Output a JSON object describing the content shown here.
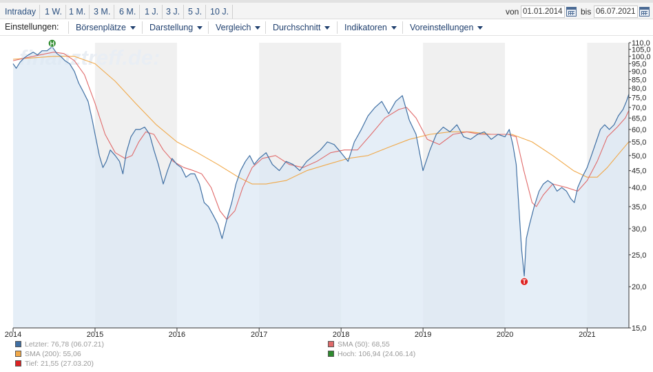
{
  "range_buttons": [
    "Intraday",
    "1 W.",
    "1 M.",
    "3 M.",
    "6 M.",
    "1 J.",
    "3 J.",
    "5 J.",
    "10 J."
  ],
  "date_range": {
    "from_label": "von",
    "from": "01.01.2014",
    "to_label": "bis",
    "to": "06.07.2021"
  },
  "settings": {
    "label": "Einstellungen:",
    "menus": [
      "Börsenplätze",
      "Darstellung",
      "Vergleich",
      "Durchschnitt",
      "Indikatoren",
      "Voreinstellungen"
    ]
  },
  "chart_data": {
    "type": "line",
    "watermark": "finanztreff.de:",
    "y_scale": "log",
    "ylim": [
      15,
      110
    ],
    "y_ticks": [
      "110,0",
      "105,0",
      "100,0",
      "95,0",
      "90,0",
      "85,0",
      "80,0",
      "75,0",
      "70,0",
      "65,0",
      "60,0",
      "55,0",
      "50,0",
      "45,0",
      "40,0",
      "35,0",
      "30,0",
      "25,0",
      "20,0",
      "15,0"
    ],
    "x_range": [
      "2014-01-01",
      "2021-07-06"
    ],
    "x_ticks": [
      {
        "label": "2014",
        "date": "2014-01-01"
      },
      {
        "label": "2015",
        "date": "2015-01-01"
      },
      {
        "label": "2016",
        "date": "2016-01-01"
      },
      {
        "label": "2017",
        "date": "2017-01-01"
      },
      {
        "label": "2018",
        "date": "2018-01-01"
      },
      {
        "label": "2019",
        "date": "2019-01-01"
      },
      {
        "label": "2020",
        "date": "2020-01-01"
      },
      {
        "label": "2021",
        "date": "2021-01-01"
      }
    ],
    "shaded_years": [
      [
        "2015-01-01",
        "2016-01-01"
      ],
      [
        "2017-01-01",
        "2018-01-01"
      ],
      [
        "2019-01-01",
        "2020-01-01"
      ],
      [
        "2021-01-01",
        "2021-07-06"
      ]
    ],
    "colors": {
      "price": "#3f6fa3",
      "price_fill": "#dce8f4",
      "sma50": "#e06a6a",
      "sma200": "#f0a848",
      "high_marker": "#2e8b2e",
      "low_marker": "#dd2222",
      "shade": "#f0f0f0"
    },
    "series": [
      {
        "name": "Letzter",
        "color": "#3f6fa3",
        "points": [
          [
            "2014-01-01",
            95
          ],
          [
            "2014-01-15",
            92
          ],
          [
            "2014-02-01",
            96
          ],
          [
            "2014-02-20",
            99
          ],
          [
            "2014-03-10",
            101
          ],
          [
            "2014-04-01",
            103
          ],
          [
            "2014-04-20",
            101
          ],
          [
            "2014-05-10",
            104
          ],
          [
            "2014-06-01",
            104
          ],
          [
            "2014-06-24",
            106.94
          ],
          [
            "2014-07-15",
            102
          ],
          [
            "2014-08-01",
            100
          ],
          [
            "2014-08-20",
            97
          ],
          [
            "2014-09-10",
            95
          ],
          [
            "2014-10-01",
            90
          ],
          [
            "2014-10-20",
            83
          ],
          [
            "2014-11-10",
            78
          ],
          [
            "2014-12-01",
            73
          ],
          [
            "2014-12-20",
            64
          ],
          [
            "2015-01-01",
            58
          ],
          [
            "2015-01-20",
            50
          ],
          [
            "2015-02-05",
            46
          ],
          [
            "2015-02-20",
            48
          ],
          [
            "2015-03-10",
            52
          ],
          [
            "2015-04-01",
            50
          ],
          [
            "2015-04-20",
            48
          ],
          [
            "2015-05-05",
            44
          ],
          [
            "2015-05-20",
            51
          ],
          [
            "2015-06-10",
            57
          ],
          [
            "2015-07-01",
            60
          ],
          [
            "2015-07-20",
            60
          ],
          [
            "2015-08-10",
            61
          ],
          [
            "2015-09-01",
            58
          ],
          [
            "2015-09-20",
            52
          ],
          [
            "2015-10-10",
            47
          ],
          [
            "2015-11-01",
            41
          ],
          [
            "2015-11-20",
            45
          ],
          [
            "2015-12-10",
            49
          ],
          [
            "2016-01-01",
            47
          ],
          [
            "2016-01-20",
            46
          ],
          [
            "2016-02-10",
            43
          ],
          [
            "2016-03-01",
            44
          ],
          [
            "2016-03-20",
            44
          ],
          [
            "2016-04-10",
            41
          ],
          [
            "2016-05-01",
            36
          ],
          [
            "2016-05-20",
            35
          ],
          [
            "2016-06-10",
            33
          ],
          [
            "2016-07-01",
            31
          ],
          [
            "2016-07-20",
            28
          ],
          [
            "2016-08-10",
            32
          ],
          [
            "2016-09-01",
            36
          ],
          [
            "2016-09-20",
            41
          ],
          [
            "2016-10-10",
            45
          ],
          [
            "2016-11-01",
            48
          ],
          [
            "2016-11-20",
            50
          ],
          [
            "2016-12-10",
            47
          ],
          [
            "2017-01-01",
            49
          ],
          [
            "2017-02-01",
            51
          ],
          [
            "2017-03-01",
            47
          ],
          [
            "2017-04-01",
            45
          ],
          [
            "2017-05-01",
            48
          ],
          [
            "2017-06-01",
            47
          ],
          [
            "2017-07-01",
            45
          ],
          [
            "2017-08-01",
            48
          ],
          [
            "2017-09-01",
            50
          ],
          [
            "2017-10-01",
            52
          ],
          [
            "2017-11-01",
            55
          ],
          [
            "2017-12-01",
            54
          ],
          [
            "2018-01-01",
            51
          ],
          [
            "2018-02-01",
            48
          ],
          [
            "2018-03-01",
            55
          ],
          [
            "2018-04-01",
            60
          ],
          [
            "2018-05-01",
            66
          ],
          [
            "2018-06-01",
            70
          ],
          [
            "2018-07-01",
            73
          ],
          [
            "2018-08-01",
            67
          ],
          [
            "2018-09-01",
            73
          ],
          [
            "2018-10-01",
            76
          ],
          [
            "2018-11-01",
            64
          ],
          [
            "2018-12-01",
            58
          ],
          [
            "2019-01-01",
            45
          ],
          [
            "2019-02-01",
            52
          ],
          [
            "2019-03-01",
            58
          ],
          [
            "2019-04-01",
            61
          ],
          [
            "2019-05-01",
            59
          ],
          [
            "2019-06-01",
            62
          ],
          [
            "2019-07-01",
            57
          ],
          [
            "2019-08-01",
            56
          ],
          [
            "2019-09-01",
            58
          ],
          [
            "2019-10-01",
            59
          ],
          [
            "2019-11-01",
            56
          ],
          [
            "2019-12-01",
            58
          ],
          [
            "2020-01-01",
            57
          ],
          [
            "2020-01-20",
            60
          ],
          [
            "2020-02-05",
            54
          ],
          [
            "2020-02-20",
            47
          ],
          [
            "2020-03-05",
            33
          ],
          [
            "2020-03-15",
            26
          ],
          [
            "2020-03-27",
            21.55
          ],
          [
            "2020-04-05",
            28
          ],
          [
            "2020-04-20",
            31
          ],
          [
            "2020-05-10",
            35
          ],
          [
            "2020-06-01",
            39
          ],
          [
            "2020-06-20",
            41
          ],
          [
            "2020-07-10",
            42
          ],
          [
            "2020-08-01",
            41
          ],
          [
            "2020-08-20",
            39
          ],
          [
            "2020-09-10",
            40
          ],
          [
            "2020-10-01",
            39
          ],
          [
            "2020-10-20",
            37
          ],
          [
            "2020-11-05",
            36
          ],
          [
            "2020-11-20",
            40
          ],
          [
            "2020-12-10",
            43
          ],
          [
            "2021-01-01",
            46
          ],
          [
            "2021-01-20",
            50
          ],
          [
            "2021-02-10",
            55
          ],
          [
            "2021-03-01",
            60
          ],
          [
            "2021-03-20",
            62
          ],
          [
            "2021-04-10",
            60
          ],
          [
            "2021-05-01",
            62
          ],
          [
            "2021-05-20",
            66
          ],
          [
            "2021-06-10",
            69
          ],
          [
            "2021-06-25",
            73
          ],
          [
            "2021-07-06",
            76.78
          ]
        ]
      },
      {
        "name": "SMA (50)",
        "color": "#e06a6a",
        "points": [
          [
            "2014-01-01",
            97
          ],
          [
            "2014-03-01",
            99
          ],
          [
            "2014-05-01",
            101
          ],
          [
            "2014-07-01",
            103
          ],
          [
            "2014-08-15",
            102
          ],
          [
            "2014-10-01",
            97
          ],
          [
            "2014-11-15",
            88
          ],
          [
            "2015-01-01",
            72
          ],
          [
            "2015-02-15",
            58
          ],
          [
            "2015-04-01",
            51
          ],
          [
            "2015-05-15",
            49
          ],
          [
            "2015-06-15",
            50
          ],
          [
            "2015-07-15",
            55
          ],
          [
            "2015-08-15",
            59
          ],
          [
            "2015-09-20",
            58
          ],
          [
            "2015-11-01",
            52
          ],
          [
            "2015-12-15",
            48
          ],
          [
            "2016-02-01",
            46
          ],
          [
            "2016-03-15",
            45
          ],
          [
            "2016-04-20",
            44
          ],
          [
            "2016-06-01",
            40
          ],
          [
            "2016-07-10",
            34
          ],
          [
            "2016-08-10",
            32
          ],
          [
            "2016-09-15",
            34
          ],
          [
            "2016-10-20",
            40
          ],
          [
            "2016-12-01",
            46
          ],
          [
            "2017-01-15",
            49
          ],
          [
            "2017-03-15",
            50
          ],
          [
            "2017-05-15",
            47
          ],
          [
            "2017-07-15",
            46
          ],
          [
            "2017-09-15",
            48
          ],
          [
            "2017-11-15",
            51
          ],
          [
            "2018-01-15",
            52
          ],
          [
            "2018-03-15",
            52
          ],
          [
            "2018-05-15",
            58
          ],
          [
            "2018-07-15",
            65
          ],
          [
            "2018-09-15",
            69
          ],
          [
            "2018-10-20",
            70
          ],
          [
            "2018-12-01",
            65
          ],
          [
            "2019-01-20",
            56
          ],
          [
            "2019-03-15",
            54
          ],
          [
            "2019-05-15",
            58
          ],
          [
            "2019-07-15",
            59
          ],
          [
            "2019-09-15",
            58
          ],
          [
            "2019-11-15",
            58
          ],
          [
            "2020-01-15",
            58
          ],
          [
            "2020-02-20",
            57
          ],
          [
            "2020-03-25",
            45
          ],
          [
            "2020-05-01",
            36
          ],
          [
            "2020-05-20",
            35
          ],
          [
            "2020-06-20",
            38
          ],
          [
            "2020-08-01",
            41
          ],
          [
            "2020-10-01",
            40
          ],
          [
            "2020-11-20",
            39
          ],
          [
            "2021-01-01",
            42
          ],
          [
            "2021-02-15",
            48
          ],
          [
            "2021-04-01",
            57
          ],
          [
            "2021-05-15",
            61
          ],
          [
            "2021-06-20",
            65
          ],
          [
            "2021-07-06",
            68.55
          ]
        ]
      },
      {
        "name": "SMA (200)",
        "color": "#f0a848",
        "points": [
          [
            "2014-01-01",
            98
          ],
          [
            "2014-04-01",
            99
          ],
          [
            "2014-07-01",
            100
          ],
          [
            "2014-10-01",
            100
          ],
          [
            "2015-01-01",
            95
          ],
          [
            "2015-04-01",
            84
          ],
          [
            "2015-07-01",
            72
          ],
          [
            "2015-10-01",
            62
          ],
          [
            "2016-01-01",
            55
          ],
          [
            "2016-04-01",
            51
          ],
          [
            "2016-07-01",
            47
          ],
          [
            "2016-10-01",
            43
          ],
          [
            "2016-12-01",
            41
          ],
          [
            "2017-02-01",
            41
          ],
          [
            "2017-05-01",
            42
          ],
          [
            "2017-08-01",
            45
          ],
          [
            "2017-11-01",
            47
          ],
          [
            "2018-02-01",
            49
          ],
          [
            "2018-05-01",
            50
          ],
          [
            "2018-08-01",
            53
          ],
          [
            "2018-11-01",
            56
          ],
          [
            "2019-02-01",
            58
          ],
          [
            "2019-05-01",
            59
          ],
          [
            "2019-08-01",
            59
          ],
          [
            "2019-11-01",
            58
          ],
          [
            "2020-02-01",
            58
          ],
          [
            "2020-05-01",
            55
          ],
          [
            "2020-08-01",
            50
          ],
          [
            "2020-11-01",
            45
          ],
          [
            "2021-01-01",
            43
          ],
          [
            "2021-02-15",
            43
          ],
          [
            "2021-04-01",
            46
          ],
          [
            "2021-05-15",
            50
          ],
          [
            "2021-07-06",
            55.06
          ]
        ]
      }
    ],
    "markers": [
      {
        "label": "H",
        "date": "2014-06-24",
        "value": 106.94,
        "position": "above"
      },
      {
        "label": "T",
        "date": "2020-03-27",
        "value": 21.55,
        "position": "below"
      }
    ]
  },
  "legend": [
    {
      "text": "Letzter: 76,78 (06.07.21)",
      "color": "#3f6fa3"
    },
    {
      "text": "SMA (50): 68,55",
      "color": "#e06a6a"
    },
    {
      "text": "SMA (200): 55,06",
      "color": "#f0a848"
    },
    {
      "text": "Hoch: 106,94 (24.06.14)",
      "color": "#2e8b2e"
    },
    {
      "text": "Tief: 21,55 (27.03.20)",
      "color": "#dd2222"
    }
  ]
}
